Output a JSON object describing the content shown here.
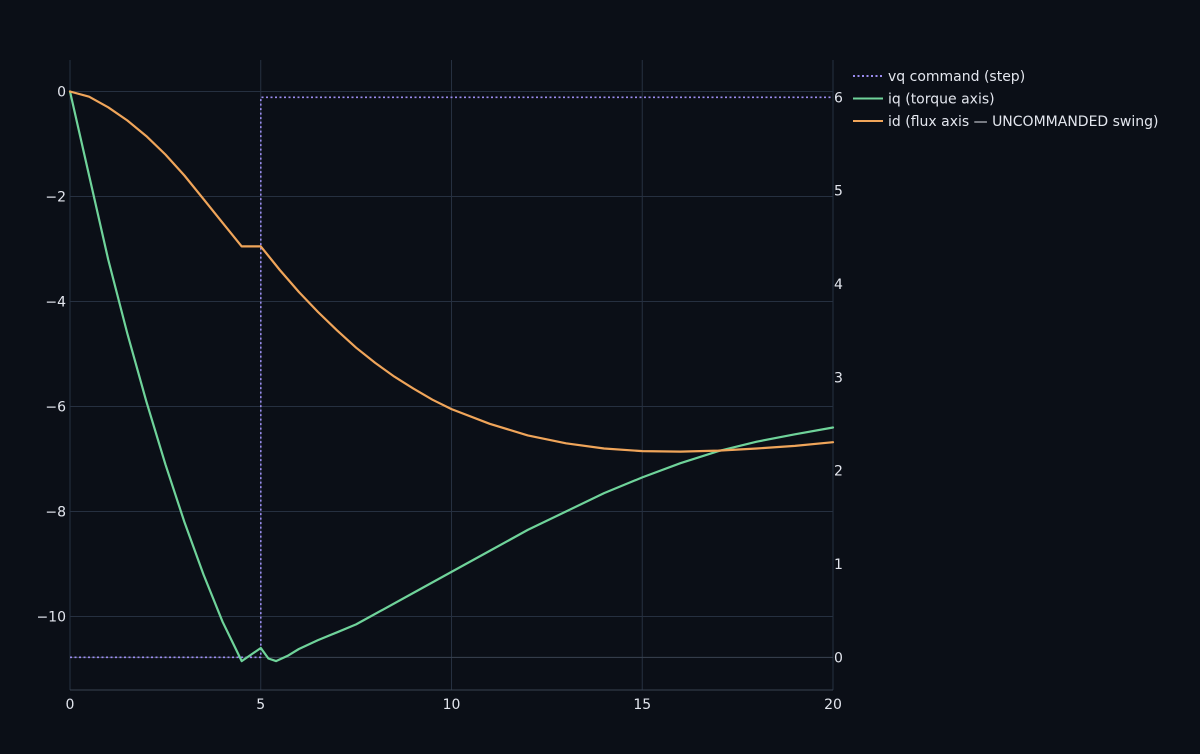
{
  "chart_data": {
    "type": "line",
    "title": "",
    "xlabel": "",
    "ylabel": "",
    "y2label": "",
    "xlim": [
      0,
      20
    ],
    "ylim": [
      -11.4,
      0.6
    ],
    "y2lim": [
      -0.35,
      6.4
    ],
    "x_ticks": [
      0,
      5,
      10,
      15,
      20
    ],
    "y_ticks": [
      0,
      -2,
      -4,
      -6,
      -8,
      -10
    ],
    "y2_ticks": [
      0,
      1,
      2,
      3,
      4,
      5,
      6
    ],
    "grid": true,
    "legend_position": "top-right, outside plot",
    "series": [
      {
        "name": "vq command (step)",
        "axis": "right",
        "dash": "dot",
        "color": "#9b8cf0",
        "x": [
          0,
          5,
          5,
          20
        ],
        "y": [
          0,
          0,
          6,
          6
        ]
      },
      {
        "name": "iq  (torque axis)",
        "axis": "left",
        "dash": "solid",
        "color": "#6fd39a",
        "x": [
          0,
          0.5,
          1,
          1.5,
          2,
          2.5,
          3,
          3.5,
          4,
          4.5,
          5,
          5.2,
          5.4,
          5.7,
          6,
          6.5,
          7,
          7.5,
          8,
          9,
          10,
          11,
          12,
          13,
          14,
          15,
          16,
          17,
          18,
          19,
          20
        ],
        "y": [
          0,
          -1.6,
          -3.2,
          -4.6,
          -5.9,
          -7.1,
          -8.2,
          -9.2,
          -10.1,
          -10.85,
          -10.6,
          -10.8,
          -10.85,
          -10.75,
          -10.62,
          -10.45,
          -10.3,
          -10.15,
          -9.95,
          -9.55,
          -9.15,
          -8.75,
          -8.35,
          -8.0,
          -7.65,
          -7.35,
          -7.08,
          -6.85,
          -6.67,
          -6.53,
          -6.4
        ]
      },
      {
        "name": "id  (flux axis — UNCOMMANDED swing)",
        "axis": "left",
        "dash": "solid",
        "color": "#f0a55a",
        "x": [
          0,
          0.5,
          1,
          1.5,
          2,
          2.5,
          3,
          3.5,
          4,
          4.5,
          5,
          5.5,
          6,
          6.5,
          7,
          7.5,
          8,
          8.5,
          9,
          9.5,
          10,
          11,
          12,
          13,
          14,
          15,
          16,
          17,
          18,
          19,
          20
        ],
        "y": [
          0,
          -0.1,
          -0.3,
          -0.55,
          -0.85,
          -1.2,
          -1.6,
          -2.05,
          -2.5,
          -2.95,
          -2.95,
          -3.4,
          -3.82,
          -4.2,
          -4.55,
          -4.88,
          -5.17,
          -5.43,
          -5.66,
          -5.87,
          -6.05,
          -6.33,
          -6.55,
          -6.7,
          -6.8,
          -6.85,
          -6.86,
          -6.84,
          -6.8,
          -6.75,
          -6.68
        ]
      }
    ]
  }
}
